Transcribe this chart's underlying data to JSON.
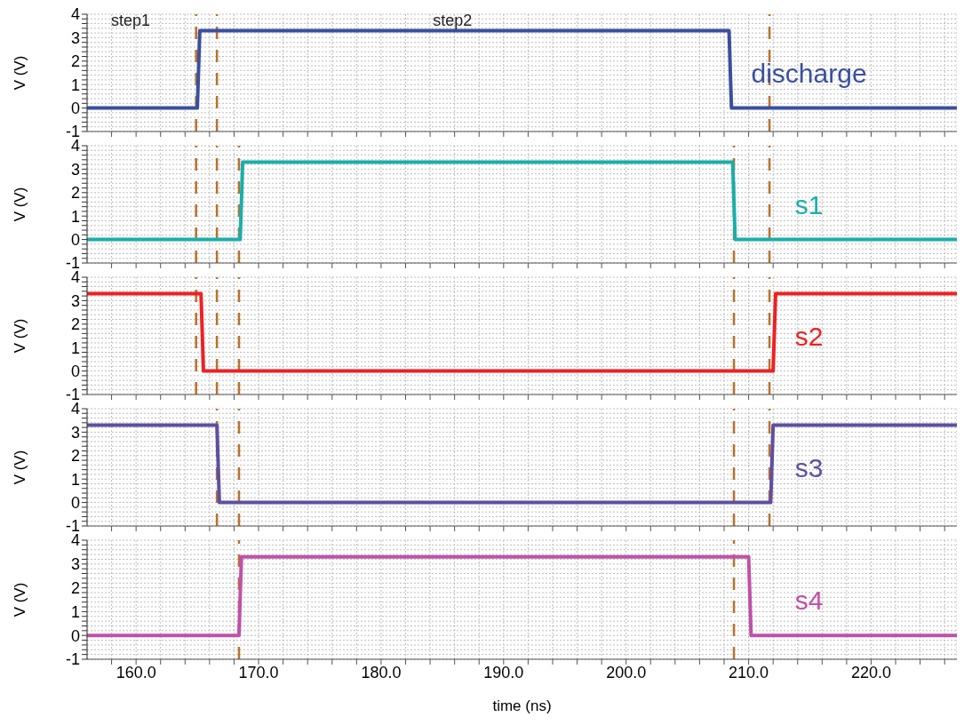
{
  "chart_data": [
    {
      "type": "line",
      "annotations": [
        "step1",
        "step2"
      ],
      "ylabel": "V (V)",
      "grid": true,
      "tick_labels": "y",
      "line_style": "solid",
      "xlim": [
        156,
        227
      ],
      "ylim": [
        -1,
        4
      ],
      "xticks": [
        {
          "value": 158,
          "label": null
        },
        {
          "value": 160,
          "label": null
        },
        {
          "value": 162,
          "label": null
        },
        {
          "value": 164,
          "label": null
        },
        {
          "value": 166,
          "label": null
        },
        {
          "value": 168,
          "label": null
        },
        {
          "value": 170,
          "label": null
        },
        {
          "value": 172,
          "label": null
        },
        {
          "value": 174,
          "label": null
        },
        {
          "value": 176,
          "label": null
        },
        {
          "value": 178,
          "label": null
        },
        {
          "value": 180,
          "label": null
        },
        {
          "value": 182,
          "label": null
        },
        {
          "value": 184,
          "label": null
        },
        {
          "value": 186,
          "label": null
        },
        {
          "value": 188,
          "label": null
        },
        {
          "value": 190,
          "label": null
        },
        {
          "value": 192,
          "label": null
        },
        {
          "value": 194,
          "label": null
        },
        {
          "value": 196,
          "label": null
        },
        {
          "value": 198,
          "label": null
        },
        {
          "value": 200,
          "label": null
        },
        {
          "value": 202,
          "label": null
        },
        {
          "value": 204,
          "label": null
        },
        {
          "value": 206,
          "label": null
        },
        {
          "value": 208,
          "label": null
        },
        {
          "value": 210,
          "label": null
        },
        {
          "value": 212,
          "label": null
        },
        {
          "value": 214,
          "label": null
        },
        {
          "value": 216,
          "label": null
        },
        {
          "value": 218,
          "label": null
        },
        {
          "value": 220,
          "label": null
        },
        {
          "value": 222,
          "label": null
        },
        {
          "value": 224,
          "label": null
        },
        {
          "value": 226,
          "label": null
        }
      ],
      "yticks": [
        -1,
        {
          "value": -0.8,
          "label": null
        },
        {
          "value": -0.6,
          "label": null
        },
        {
          "value": -0.4,
          "label": null
        },
        {
          "value": -0.2,
          "label": null
        },
        0,
        {
          "value": 0.2,
          "label": null
        },
        {
          "value": 0.4,
          "label": null
        },
        {
          "value": 0.6,
          "label": null
        },
        {
          "value": 0.8,
          "label": null
        },
        1,
        {
          "value": 1.2,
          "label": null
        },
        {
          "value": 1.4,
          "label": null
        },
        {
          "value": 1.6,
          "label": null
        },
        {
          "value": 1.8,
          "label": null
        },
        2,
        {
          "value": 2.2,
          "label": null
        },
        {
          "value": 2.4,
          "label": null
        },
        {
          "value": 2.6,
          "label": null
        },
        {
          "value": 2.8,
          "label": null
        },
        3,
        {
          "value": 3.2,
          "label": null
        },
        {
          "value": 3.4,
          "label": null
        },
        {
          "value": 3.6,
          "label": null
        },
        {
          "value": 3.8,
          "label": null
        },
        4
      ],
      "series": [
        {
          "name": "discharge",
          "color": "#3a4fa0",
          "x": [
            156,
            165.0,
            165.2,
            208.4,
            208.6,
            227
          ],
          "values": [
            0,
            0,
            3.3,
            3.3,
            0,
            0
          ]
        }
      ],
      "ref_lines": [
        {
          "axis": "x",
          "value": 164.9,
          "color": "#b8722c",
          "line_style": "dashed"
        },
        {
          "axis": "x",
          "value": 166.6,
          "color": "#b8722c",
          "line_style": "dashed"
        },
        {
          "axis": "x",
          "value": 211.7,
          "color": "#b8722c",
          "line_style": "dashed"
        }
      ]
    },
    {
      "type": "line",
      "ylabel": "V (V)",
      "grid": true,
      "tick_labels": "y",
      "line_style": "solid",
      "xlim": [
        156,
        227
      ],
      "ylim": [
        -1,
        4
      ],
      "xticks": [
        {
          "value": 158,
          "label": null
        },
        {
          "value": 160,
          "label": null
        },
        {
          "value": 162,
          "label": null
        },
        {
          "value": 164,
          "label": null
        },
        {
          "value": 166,
          "label": null
        },
        {
          "value": 168,
          "label": null
        },
        {
          "value": 170,
          "label": null
        },
        {
          "value": 172,
          "label": null
        },
        {
          "value": 174,
          "label": null
        },
        {
          "value": 176,
          "label": null
        },
        {
          "value": 178,
          "label": null
        },
        {
          "value": 180,
          "label": null
        },
        {
          "value": 182,
          "label": null
        },
        {
          "value": 184,
          "label": null
        },
        {
          "value": 186,
          "label": null
        },
        {
          "value": 188,
          "label": null
        },
        {
          "value": 190,
          "label": null
        },
        {
          "value": 192,
          "label": null
        },
        {
          "value": 194,
          "label": null
        },
        {
          "value": 196,
          "label": null
        },
        {
          "value": 198,
          "label": null
        },
        {
          "value": 200,
          "label": null
        },
        {
          "value": 202,
          "label": null
        },
        {
          "value": 204,
          "label": null
        },
        {
          "value": 206,
          "label": null
        },
        {
          "value": 208,
          "label": null
        },
        {
          "value": 210,
          "label": null
        },
        {
          "value": 212,
          "label": null
        },
        {
          "value": 214,
          "label": null
        },
        {
          "value": 216,
          "label": null
        },
        {
          "value": 218,
          "label": null
        },
        {
          "value": 220,
          "label": null
        },
        {
          "value": 222,
          "label": null
        },
        {
          "value": 224,
          "label": null
        },
        {
          "value": 226,
          "label": null
        }
      ],
      "yticks": [
        -1,
        {
          "value": -0.8,
          "label": null
        },
        {
          "value": -0.6,
          "label": null
        },
        {
          "value": -0.4,
          "label": null
        },
        {
          "value": -0.2,
          "label": null
        },
        0,
        {
          "value": 0.2,
          "label": null
        },
        {
          "value": 0.4,
          "label": null
        },
        {
          "value": 0.6,
          "label": null
        },
        {
          "value": 0.8,
          "label": null
        },
        1,
        {
          "value": 1.2,
          "label": null
        },
        {
          "value": 1.4,
          "label": null
        },
        {
          "value": 1.6,
          "label": null
        },
        {
          "value": 1.8,
          "label": null
        },
        2,
        {
          "value": 2.2,
          "label": null
        },
        {
          "value": 2.4,
          "label": null
        },
        {
          "value": 2.6,
          "label": null
        },
        {
          "value": 2.8,
          "label": null
        },
        3,
        {
          "value": 3.2,
          "label": null
        },
        {
          "value": 3.4,
          "label": null
        },
        {
          "value": 3.6,
          "label": null
        },
        {
          "value": 3.8,
          "label": null
        },
        4
      ],
      "series": [
        {
          "name": "s1",
          "color": "#1aaeaa",
          "x": [
            156,
            168.5,
            168.7,
            208.7,
            208.9,
            227
          ],
          "values": [
            0,
            0,
            3.3,
            3.3,
            0,
            0
          ]
        }
      ],
      "ref_lines": [
        {
          "axis": "x",
          "value": 164.9,
          "color": "#b8722c",
          "line_style": "dashed"
        },
        {
          "axis": "x",
          "value": 166.6,
          "color": "#b8722c",
          "line_style": "dashed"
        },
        {
          "axis": "x",
          "value": 168.4,
          "color": "#b8722c",
          "line_style": "dashed"
        },
        {
          "axis": "x",
          "value": 208.8,
          "color": "#b8722c",
          "line_style": "dashed"
        },
        {
          "axis": "x",
          "value": 211.7,
          "color": "#b8722c",
          "line_style": "dashed"
        }
      ]
    },
    {
      "type": "line",
      "ylabel": "V (V)",
      "grid": true,
      "tick_labels": "y",
      "line_style": "solid",
      "xlim": [
        156,
        227
      ],
      "ylim": [
        -1,
        4
      ],
      "xticks": [
        {
          "value": 158,
          "label": null
        },
        {
          "value": 160,
          "label": null
        },
        {
          "value": 162,
          "label": null
        },
        {
          "value": 164,
          "label": null
        },
        {
          "value": 166,
          "label": null
        },
        {
          "value": 168,
          "label": null
        },
        {
          "value": 170,
          "label": null
        },
        {
          "value": 172,
          "label": null
        },
        {
          "value": 174,
          "label": null
        },
        {
          "value": 176,
          "label": null
        },
        {
          "value": 178,
          "label": null
        },
        {
          "value": 180,
          "label": null
        },
        {
          "value": 182,
          "label": null
        },
        {
          "value": 184,
          "label": null
        },
        {
          "value": 186,
          "label": null
        },
        {
          "value": 188,
          "label": null
        },
        {
          "value": 190,
          "label": null
        },
        {
          "value": 192,
          "label": null
        },
        {
          "value": 194,
          "label": null
        },
        {
          "value": 196,
          "label": null
        },
        {
          "value": 198,
          "label": null
        },
        {
          "value": 200,
          "label": null
        },
        {
          "value": 202,
          "label": null
        },
        {
          "value": 204,
          "label": null
        },
        {
          "value": 206,
          "label": null
        },
        {
          "value": 208,
          "label": null
        },
        {
          "value": 210,
          "label": null
        },
        {
          "value": 212,
          "label": null
        },
        {
          "value": 214,
          "label": null
        },
        {
          "value": 216,
          "label": null
        },
        {
          "value": 218,
          "label": null
        },
        {
          "value": 220,
          "label": null
        },
        {
          "value": 222,
          "label": null
        },
        {
          "value": 224,
          "label": null
        },
        {
          "value": 226,
          "label": null
        }
      ],
      "yticks": [
        -1,
        {
          "value": -0.8,
          "label": null
        },
        {
          "value": -0.6,
          "label": null
        },
        {
          "value": -0.4,
          "label": null
        },
        {
          "value": -0.2,
          "label": null
        },
        0,
        {
          "value": 0.2,
          "label": null
        },
        {
          "value": 0.4,
          "label": null
        },
        {
          "value": 0.6,
          "label": null
        },
        {
          "value": 0.8,
          "label": null
        },
        1,
        {
          "value": 1.2,
          "label": null
        },
        {
          "value": 1.4,
          "label": null
        },
        {
          "value": 1.6,
          "label": null
        },
        {
          "value": 1.8,
          "label": null
        },
        2,
        {
          "value": 2.2,
          "label": null
        },
        {
          "value": 2.4,
          "label": null
        },
        {
          "value": 2.6,
          "label": null
        },
        {
          "value": 2.8,
          "label": null
        },
        3,
        {
          "value": 3.2,
          "label": null
        },
        {
          "value": 3.4,
          "label": null
        },
        {
          "value": 3.6,
          "label": null
        },
        {
          "value": 3.8,
          "label": null
        },
        4
      ],
      "series": [
        {
          "name": "s2",
          "color": "#ee2024",
          "x": [
            156,
            165.3,
            165.5,
            212.0,
            212.2,
            227
          ],
          "values": [
            3.3,
            3.3,
            0,
            0,
            3.3,
            3.3
          ]
        }
      ],
      "ref_lines": [
        {
          "axis": "x",
          "value": 164.9,
          "color": "#b8722c",
          "line_style": "dashed"
        },
        {
          "axis": "x",
          "value": 166.6,
          "color": "#b8722c",
          "line_style": "dashed"
        },
        {
          "axis": "x",
          "value": 168.4,
          "color": "#b8722c",
          "line_style": "dashed"
        },
        {
          "axis": "x",
          "value": 208.8,
          "color": "#b8722c",
          "line_style": "dashed"
        },
        {
          "axis": "x",
          "value": 211.7,
          "color": "#b8722c",
          "line_style": "dashed"
        }
      ]
    },
    {
      "type": "line",
      "ylabel": "V (V)",
      "grid": true,
      "tick_labels": "y",
      "line_style": "solid",
      "xlim": [
        156,
        227
      ],
      "ylim": [
        -1,
        4
      ],
      "xticks": [
        {
          "value": 158,
          "label": null
        },
        {
          "value": 160,
          "label": null
        },
        {
          "value": 162,
          "label": null
        },
        {
          "value": 164,
          "label": null
        },
        {
          "value": 166,
          "label": null
        },
        {
          "value": 168,
          "label": null
        },
        {
          "value": 170,
          "label": null
        },
        {
          "value": 172,
          "label": null
        },
        {
          "value": 174,
          "label": null
        },
        {
          "value": 176,
          "label": null
        },
        {
          "value": 178,
          "label": null
        },
        {
          "value": 180,
          "label": null
        },
        {
          "value": 182,
          "label": null
        },
        {
          "value": 184,
          "label": null
        },
        {
          "value": 186,
          "label": null
        },
        {
          "value": 188,
          "label": null
        },
        {
          "value": 190,
          "label": null
        },
        {
          "value": 192,
          "label": null
        },
        {
          "value": 194,
          "label": null
        },
        {
          "value": 196,
          "label": null
        },
        {
          "value": 198,
          "label": null
        },
        {
          "value": 200,
          "label": null
        },
        {
          "value": 202,
          "label": null
        },
        {
          "value": 204,
          "label": null
        },
        {
          "value": 206,
          "label": null
        },
        {
          "value": 208,
          "label": null
        },
        {
          "value": 210,
          "label": null
        },
        {
          "value": 212,
          "label": null
        },
        {
          "value": 214,
          "label": null
        },
        {
          "value": 216,
          "label": null
        },
        {
          "value": 218,
          "label": null
        },
        {
          "value": 220,
          "label": null
        },
        {
          "value": 222,
          "label": null
        },
        {
          "value": 224,
          "label": null
        },
        {
          "value": 226,
          "label": null
        }
      ],
      "yticks": [
        -1,
        {
          "value": -0.8,
          "label": null
        },
        {
          "value": -0.6,
          "label": null
        },
        {
          "value": -0.4,
          "label": null
        },
        {
          "value": -0.2,
          "label": null
        },
        0,
        {
          "value": 0.2,
          "label": null
        },
        {
          "value": 0.4,
          "label": null
        },
        {
          "value": 0.6,
          "label": null
        },
        {
          "value": 0.8,
          "label": null
        },
        1,
        {
          "value": 1.2,
          "label": null
        },
        {
          "value": 1.4,
          "label": null
        },
        {
          "value": 1.6,
          "label": null
        },
        {
          "value": 1.8,
          "label": null
        },
        2,
        {
          "value": 2.2,
          "label": null
        },
        {
          "value": 2.4,
          "label": null
        },
        {
          "value": 2.6,
          "label": null
        },
        {
          "value": 2.8,
          "label": null
        },
        3,
        {
          "value": 3.2,
          "label": null
        },
        {
          "value": 3.4,
          "label": null
        },
        {
          "value": 3.6,
          "label": null
        },
        {
          "value": 3.8,
          "label": null
        },
        4
      ],
      "series": [
        {
          "name": "s3",
          "color": "#5e4fa2",
          "x": [
            156,
            166.6,
            166.8,
            211.8,
            212.0,
            227
          ],
          "values": [
            3.3,
            3.3,
            0,
            0,
            3.3,
            3.3
          ]
        }
      ],
      "ref_lines": [
        {
          "axis": "x",
          "value": 166.6,
          "color": "#b8722c",
          "line_style": "dashed"
        },
        {
          "axis": "x",
          "value": 168.4,
          "color": "#b8722c",
          "line_style": "dashed"
        },
        {
          "axis": "x",
          "value": 208.8,
          "color": "#b8722c",
          "line_style": "dashed"
        },
        {
          "axis": "x",
          "value": 211.7,
          "color": "#b8722c",
          "line_style": "dashed"
        }
      ]
    },
    {
      "type": "line",
      "xlabel": "time (ns)",
      "ylabel": "V (V)",
      "grid": true,
      "line_style": "solid",
      "xlim": [
        156,
        227
      ],
      "ylim": [
        -1,
        4
      ],
      "xticks": [
        {
          "value": 158,
          "label": null
        },
        {
          "value": 160,
          "label": "160.0"
        },
        {
          "value": 162,
          "label": null
        },
        {
          "value": 164,
          "label": null
        },
        {
          "value": 166,
          "label": null
        },
        {
          "value": 168,
          "label": null
        },
        {
          "value": 170,
          "label": "170.0"
        },
        {
          "value": 172,
          "label": null
        },
        {
          "value": 174,
          "label": null
        },
        {
          "value": 176,
          "label": null
        },
        {
          "value": 178,
          "label": null
        },
        {
          "value": 180,
          "label": "180.0"
        },
        {
          "value": 182,
          "label": null
        },
        {
          "value": 184,
          "label": null
        },
        {
          "value": 186,
          "label": null
        },
        {
          "value": 188,
          "label": null
        },
        {
          "value": 190,
          "label": "190.0"
        },
        {
          "value": 192,
          "label": null
        },
        {
          "value": 194,
          "label": null
        },
        {
          "value": 196,
          "label": null
        },
        {
          "value": 198,
          "label": null
        },
        {
          "value": 200,
          "label": "200.0"
        },
        {
          "value": 202,
          "label": null
        },
        {
          "value": 204,
          "label": null
        },
        {
          "value": 206,
          "label": null
        },
        {
          "value": 208,
          "label": null
        },
        {
          "value": 210,
          "label": "210.0"
        },
        {
          "value": 212,
          "label": null
        },
        {
          "value": 214,
          "label": null
        },
        {
          "value": 216,
          "label": null
        },
        {
          "value": 218,
          "label": null
        },
        {
          "value": 220,
          "label": "220.0"
        },
        {
          "value": 222,
          "label": null
        },
        {
          "value": 224,
          "label": null
        },
        {
          "value": 226,
          "label": null
        }
      ],
      "yticks": [
        -1,
        {
          "value": -0.8,
          "label": null
        },
        {
          "value": -0.6,
          "label": null
        },
        {
          "value": -0.4,
          "label": null
        },
        {
          "value": -0.2,
          "label": null
        },
        0,
        {
          "value": 0.2,
          "label": null
        },
        {
          "value": 0.4,
          "label": null
        },
        {
          "value": 0.6,
          "label": null
        },
        {
          "value": 0.8,
          "label": null
        },
        1,
        {
          "value": 1.2,
          "label": null
        },
        {
          "value": 1.4,
          "label": null
        },
        {
          "value": 1.6,
          "label": null
        },
        {
          "value": 1.8,
          "label": null
        },
        2,
        {
          "value": 2.2,
          "label": null
        },
        {
          "value": 2.4,
          "label": null
        },
        {
          "value": 2.6,
          "label": null
        },
        {
          "value": 2.8,
          "label": null
        },
        3,
        {
          "value": 3.2,
          "label": null
        },
        {
          "value": 3.4,
          "label": null
        },
        {
          "value": 3.6,
          "label": null
        },
        {
          "value": 3.8,
          "label": null
        },
        4
      ],
      "series": [
        {
          "name": "s4",
          "color": "#c050a8",
          "x": [
            156,
            168.4,
            168.6,
            210.0,
            210.2,
            227
          ],
          "values": [
            0,
            0,
            3.3,
            3.3,
            0,
            0
          ]
        }
      ],
      "ref_lines": [
        {
          "axis": "x",
          "value": 168.4,
          "color": "#b8722c",
          "line_style": "dashed"
        },
        {
          "axis": "x",
          "value": 208.8,
          "color": "#b8722c",
          "line_style": "dashed"
        }
      ]
    }
  ]
}
